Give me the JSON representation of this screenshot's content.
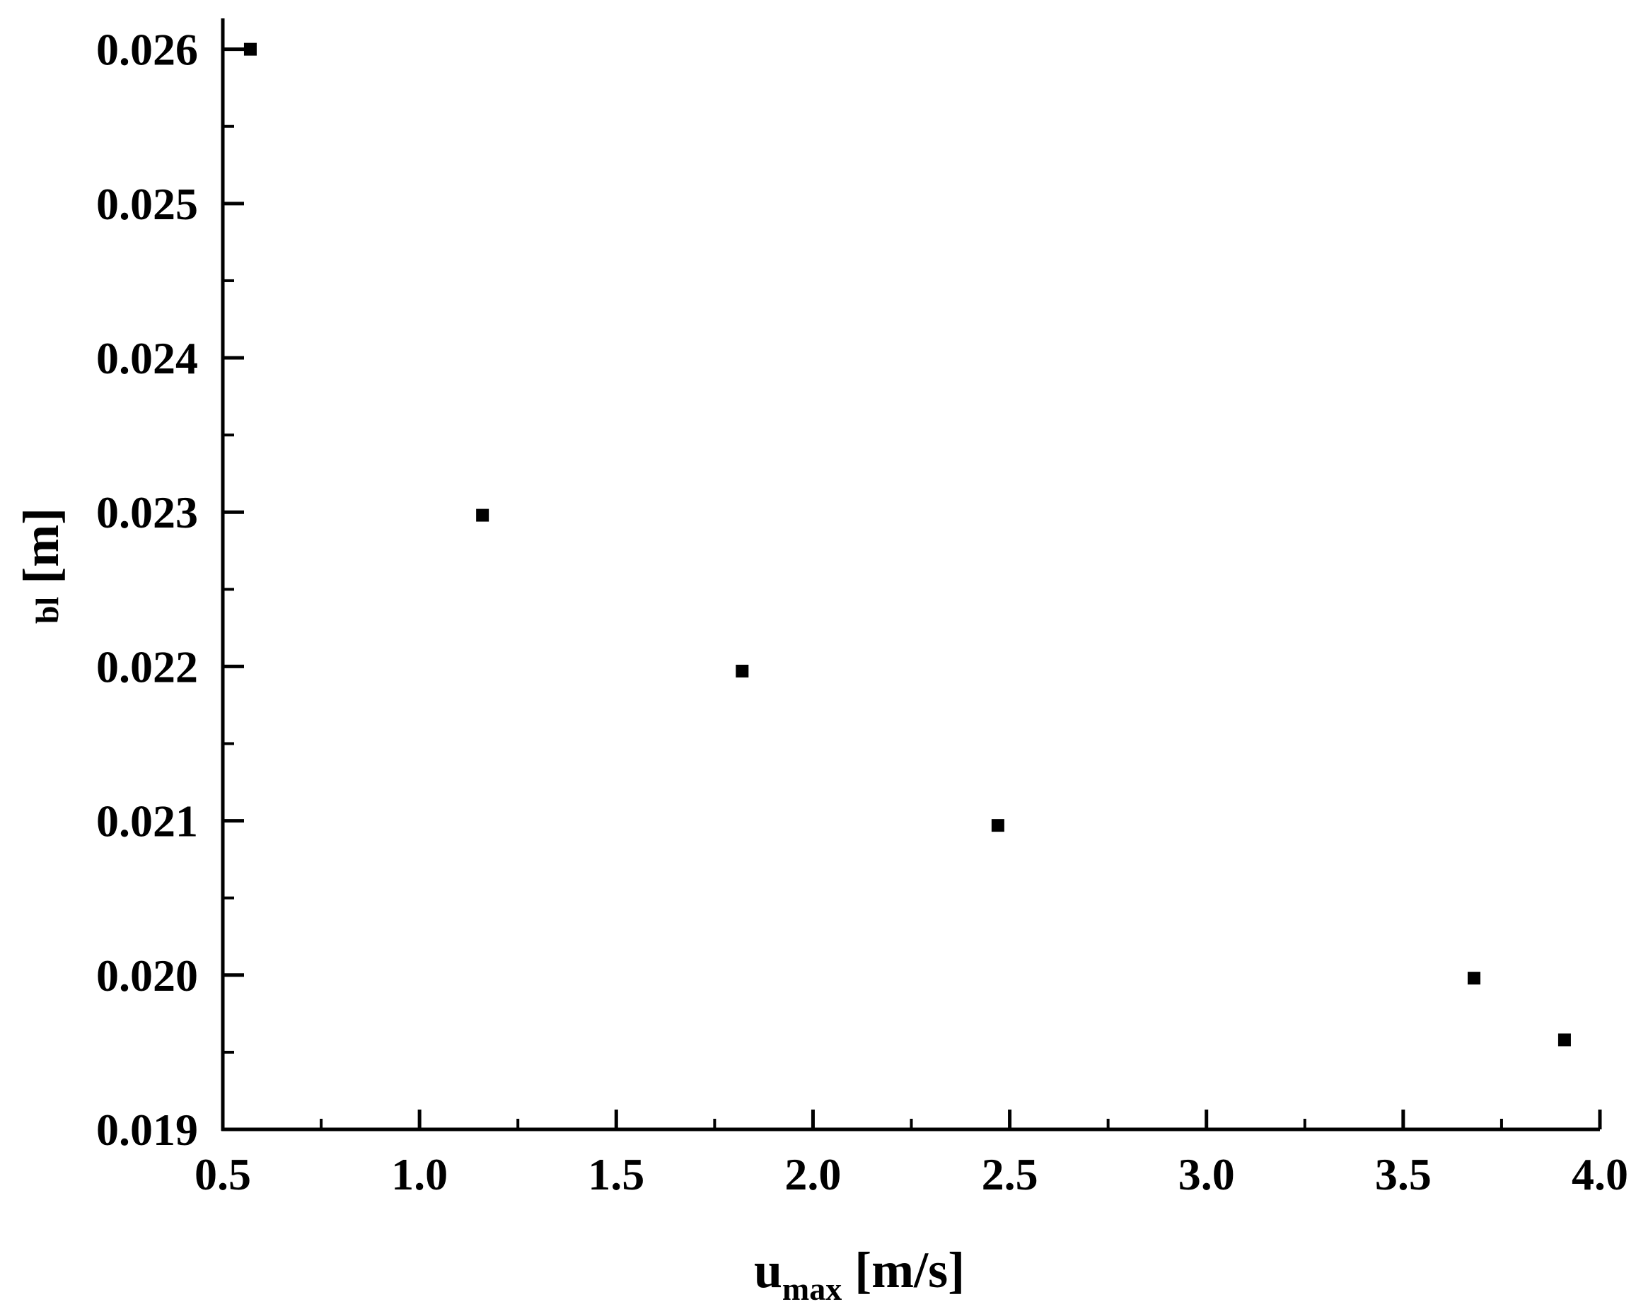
{
  "chart_data": {
    "type": "scatter",
    "x": [
      0.57,
      1.16,
      1.82,
      2.47,
      3.68,
      3.91
    ],
    "y": [
      0.026,
      0.02298,
      0.02197,
      0.02097,
      0.01998,
      0.01958
    ],
    "xlim": [
      0.5,
      4.0
    ],
    "ylim": [
      0.019,
      0.0262
    ],
    "xticks": [
      "0.5",
      "1.0",
      "1.5",
      "2.0",
      "2.5",
      "3.0",
      "3.5",
      "4.0"
    ],
    "yticks": [
      "0.019",
      "0.020",
      "0.021",
      "0.022",
      "0.023",
      "0.024",
      "0.025",
      "0.026"
    ],
    "xlabel": {
      "main": "u",
      "sub": "max",
      "unit": " [m/s]"
    },
    "ylabel": {
      "main": "",
      "sub": "bl",
      "unit": " [m]"
    },
    "marker": "square",
    "colors": {
      "marker": "#000000",
      "axis": "#000000"
    },
    "grid": false
  }
}
